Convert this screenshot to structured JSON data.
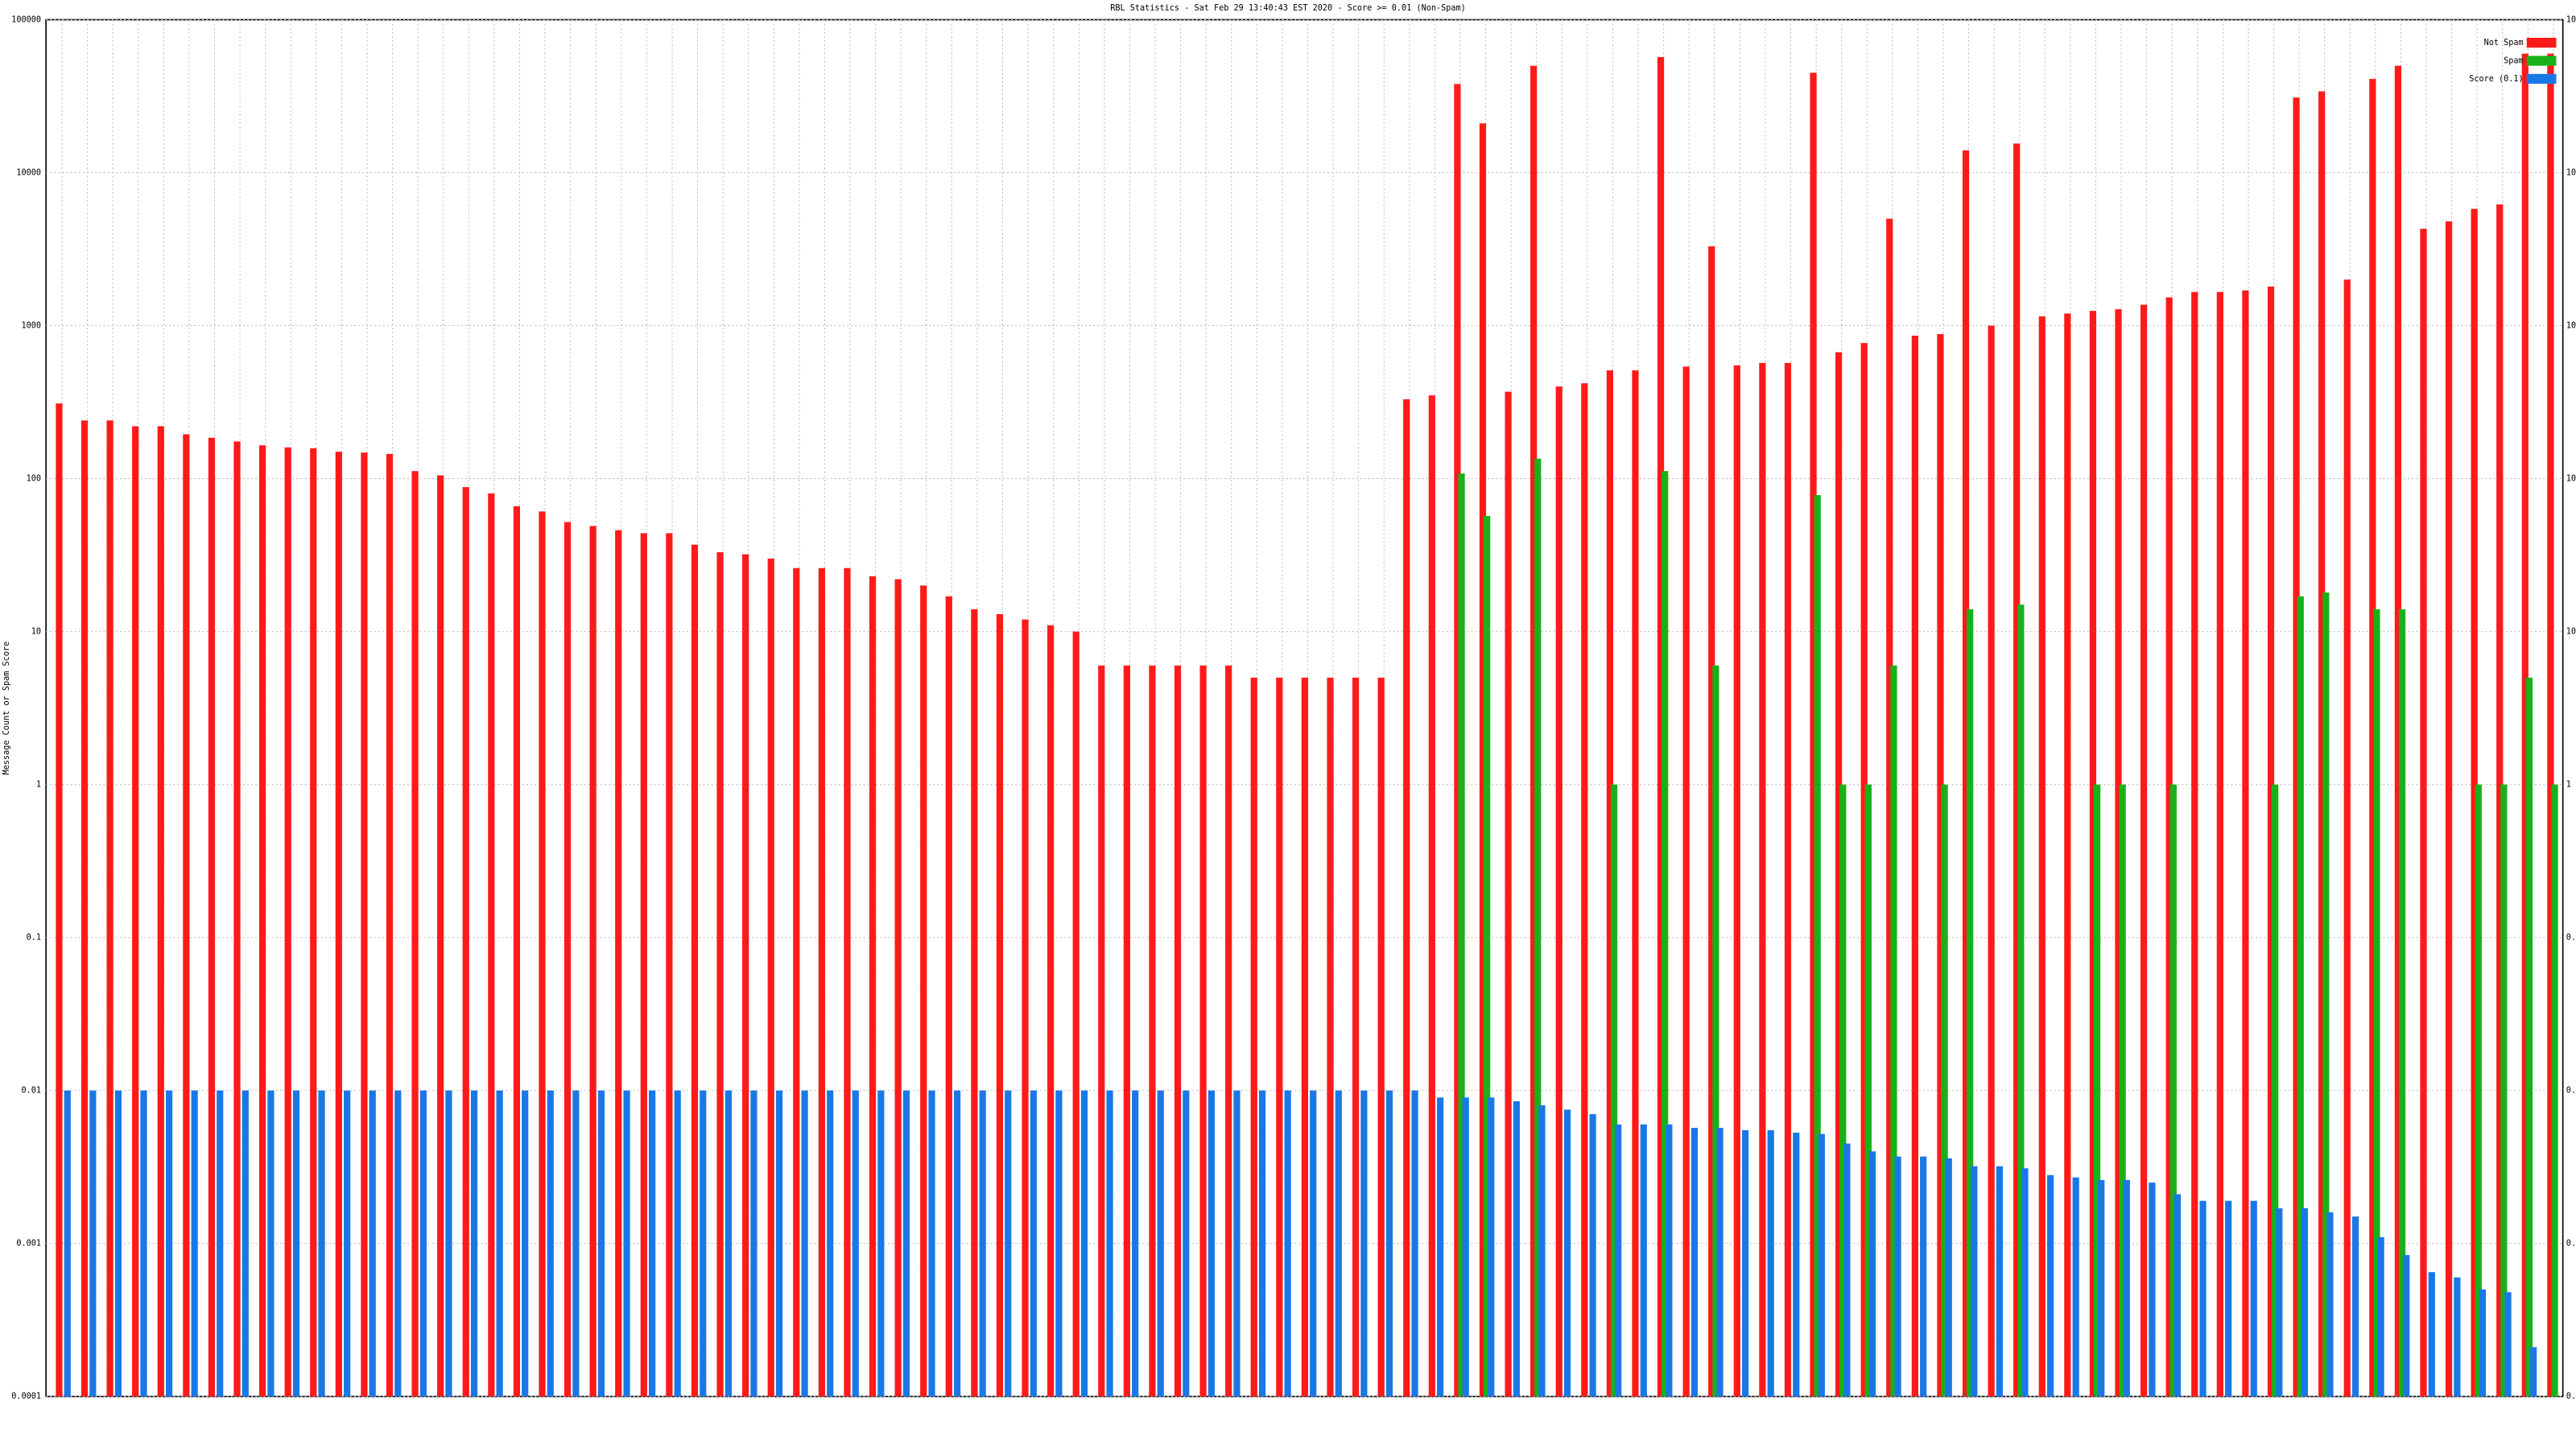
{
  "chart_data": {
    "type": "bar",
    "title": "RBL Statistics - Sat Feb 29 13:40:43 EST 2020 - Score >= 0.01 (Non-Spam)",
    "y_label": "Message Count or Spam Score",
    "log_scale": true,
    "grid": true,
    "legend": "top-right",
    "ylim": [
      0.0001,
      100000
    ],
    "yticks": [
      0.0001,
      0.001,
      0.01,
      0.1,
      1,
      10,
      100,
      1000,
      10000,
      100000
    ],
    "categories": [
      null,
      null,
      null,
      null,
      null,
      null,
      null,
      null,
      null,
      null,
      null,
      null,
      null,
      null,
      null,
      null,
      null,
      null,
      null,
      null,
      null,
      null,
      null,
      null,
      null,
      null,
      null,
      null,
      null,
      null,
      null,
      null,
      null,
      null,
      null,
      null,
      null,
      null,
      null,
      null,
      null,
      null,
      null,
      null,
      null,
      null,
      null,
      null,
      null,
      null,
      null,
      null,
      null,
      null,
      null,
      null,
      null,
      null,
      null,
      null,
      null,
      null,
      null,
      null,
      null,
      null,
      null,
      null,
      null,
      null,
      null,
      null,
      null,
      null,
      null,
      null,
      null,
      null,
      null,
      null,
      null,
      null,
      null,
      null,
      null,
      null,
      null,
      null,
      null,
      null,
      null,
      null,
      null,
      null,
      null,
      null,
      null,
      null,
      null
    ],
    "series": [
      {
        "name": "Not Spam",
        "color": "#ff1a1a",
        "values": [
          310,
          240,
          240,
          220,
          220,
          195,
          185,
          175,
          165,
          160,
          158,
          150,
          148,
          145,
          112,
          105,
          88,
          80,
          66,
          61,
          52,
          49,
          46,
          44,
          44,
          37,
          33,
          32,
          30,
          26,
          26,
          26,
          23,
          22,
          20,
          17,
          14,
          13,
          12,
          11,
          10,
          6,
          6,
          6,
          6,
          6,
          6,
          5,
          5,
          5,
          5,
          5,
          5,
          330,
          350,
          38000,
          21000,
          370,
          50000,
          400,
          420,
          510,
          510,
          57000,
          540,
          3300,
          550,
          570,
          570,
          45000,
          670,
          770,
          5000,
          860,
          880,
          14000,
          1000,
          15500,
          1150,
          1200,
          1250,
          1280,
          1370,
          1530,
          1660,
          1660,
          1700,
          1800,
          31000,
          34000,
          2000,
          41000,
          50000,
          4300,
          4800,
          5800,
          6200,
          60000,
          60000
        ]
      },
      {
        "name": "Spam",
        "color": "#1ab01a",
        "values": [
          null,
          null,
          null,
          null,
          null,
          null,
          null,
          null,
          null,
          null,
          null,
          null,
          null,
          null,
          null,
          null,
          null,
          null,
          null,
          null,
          null,
          null,
          null,
          null,
          null,
          null,
          null,
          null,
          null,
          null,
          null,
          null,
          null,
          null,
          null,
          null,
          null,
          null,
          null,
          null,
          null,
          null,
          null,
          null,
          null,
          null,
          null,
          null,
          null,
          null,
          null,
          null,
          null,
          null,
          null,
          108,
          57,
          null,
          135,
          null,
          null,
          1,
          null,
          112,
          null,
          6,
          null,
          null,
          null,
          78,
          1,
          1,
          6,
          null,
          1,
          14,
          null,
          15,
          null,
          null,
          1,
          1,
          null,
          1,
          null,
          null,
          null,
          1,
          17,
          18,
          null,
          14,
          14,
          null,
          null,
          1,
          1,
          5,
          1
        ]
      },
      {
        "name": "Score (0.1)",
        "color": "#1a78e6",
        "values": [
          0.01,
          0.01,
          0.01,
          0.01,
          0.01,
          0.01,
          0.01,
          0.01,
          0.01,
          0.01,
          0.01,
          0.01,
          0.01,
          0.01,
          0.01,
          0.01,
          0.01,
          0.01,
          0.01,
          0.01,
          0.01,
          0.01,
          0.01,
          0.01,
          0.01,
          0.01,
          0.01,
          0.01,
          0.01,
          0.01,
          0.01,
          0.01,
          0.01,
          0.01,
          0.01,
          0.01,
          0.01,
          0.01,
          0.01,
          0.01,
          0.01,
          0.01,
          0.01,
          0.01,
          0.01,
          0.01,
          0.01,
          0.01,
          0.01,
          0.01,
          0.01,
          0.01,
          0.01,
          0.01,
          0.009,
          0.009,
          0.009,
          0.0085,
          0.008,
          0.0075,
          0.007,
          0.006,
          0.006,
          0.006,
          0.0057,
          0.0057,
          0.0055,
          0.0055,
          0.0053,
          0.0052,
          0.0045,
          0.004,
          0.0037,
          0.0037,
          0.0036,
          0.0032,
          0.0032,
          0.0031,
          0.0028,
          0.0027,
          0.0026,
          0.0026,
          0.0025,
          0.0021,
          0.0019,
          0.0019,
          0.0019,
          0.0017,
          0.0017,
          0.0016,
          0.0015,
          0.0011,
          0.00084,
          0.00065,
          0.0006,
          0.0005,
          0.00048,
          0.00021,
          null
        ]
      }
    ]
  }
}
